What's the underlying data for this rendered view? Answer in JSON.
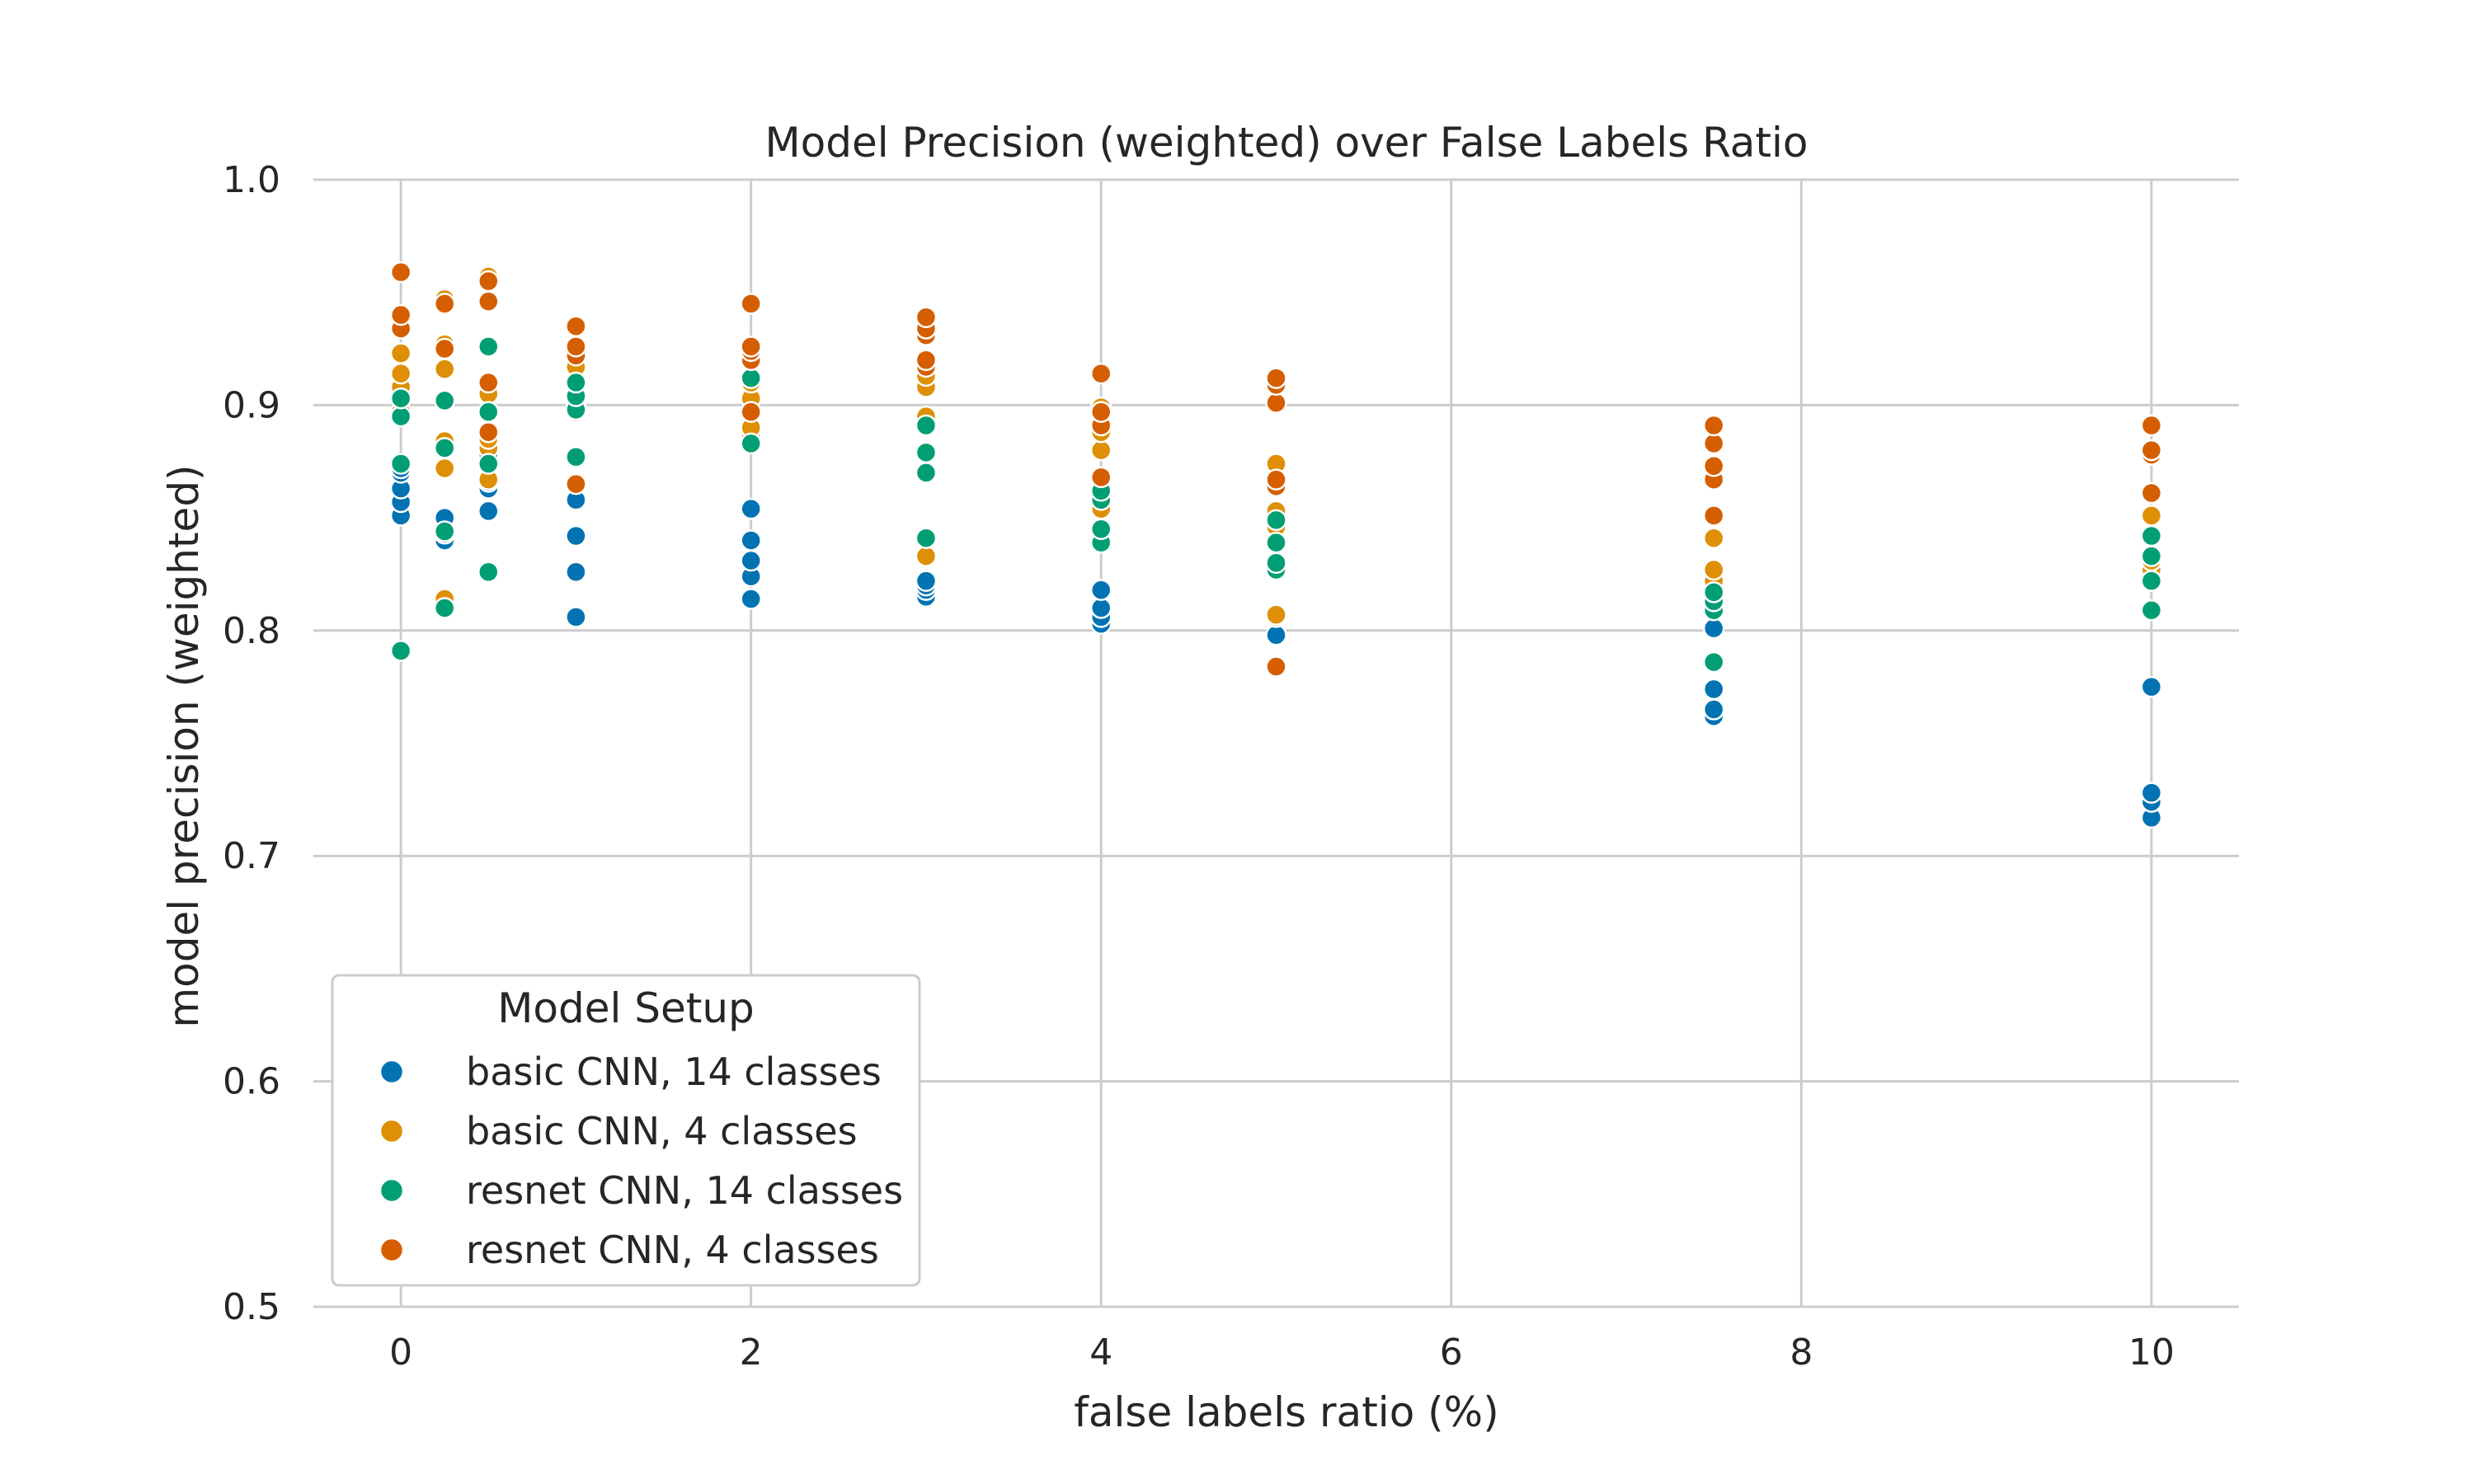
{
  "chart_data": {
    "type": "scatter",
    "title": "Model Precision (weighted) over False Labels Ratio",
    "xlabel": "false labels ratio (%)",
    "ylabel": "model precision (weighted)",
    "xlim": [
      -0.5,
      10.5
    ],
    "ylim": [
      0.5,
      1.0
    ],
    "xticks": [
      "0",
      "2",
      "4",
      "6",
      "8",
      "10"
    ],
    "yticks": [
      "0.5",
      "0.6",
      "0.7",
      "0.8",
      "0.9",
      "1.0"
    ],
    "grid": true,
    "legend_title": "Model Setup",
    "legend_position": "lower-left",
    "series": [
      {
        "name": "basic CNN, 14 classes",
        "color": "#0173b2",
        "points": [
          [
            0,
            0.851
          ],
          [
            0,
            0.857
          ],
          [
            0,
            0.863
          ],
          [
            0,
            0.87
          ],
          [
            0,
            0.872
          ],
          [
            0.25,
            0.84
          ],
          [
            0.25,
            0.843
          ],
          [
            0.25,
            0.85
          ],
          [
            0.5,
            0.853
          ],
          [
            0.5,
            0.863
          ],
          [
            0.5,
            0.866
          ],
          [
            0.5,
            0.878
          ],
          [
            1,
            0.806
          ],
          [
            1,
            0.826
          ],
          [
            1,
            0.842
          ],
          [
            1,
            0.858
          ],
          [
            2,
            0.814
          ],
          [
            2,
            0.824
          ],
          [
            2,
            0.831
          ],
          [
            2,
            0.84
          ],
          [
            2,
            0.854
          ],
          [
            3,
            0.815
          ],
          [
            3,
            0.818
          ],
          [
            3,
            0.82
          ],
          [
            3,
            0.822
          ],
          [
            4,
            0.803
          ],
          [
            4,
            0.806
          ],
          [
            4,
            0.81
          ],
          [
            4,
            0.818
          ],
          [
            5,
            0.798
          ],
          [
            7.5,
            0.762
          ],
          [
            7.5,
            0.765
          ],
          [
            7.5,
            0.774
          ],
          [
            7.5,
            0.801
          ],
          [
            10,
            0.717
          ],
          [
            10,
            0.724
          ],
          [
            10,
            0.728
          ],
          [
            10,
            0.775
          ]
        ]
      },
      {
        "name": "basic CNN, 4 classes",
        "color": "#de8f05",
        "points": [
          [
            0,
            0.897
          ],
          [
            0,
            0.903
          ],
          [
            0,
            0.908
          ],
          [
            0,
            0.914
          ],
          [
            0,
            0.923
          ],
          [
            0.25,
            0.814
          ],
          [
            0.25,
            0.872
          ],
          [
            0.25,
            0.884
          ],
          [
            0.25,
            0.916
          ],
          [
            0.25,
            0.927
          ],
          [
            0.25,
            0.947
          ],
          [
            0.5,
            0.867
          ],
          [
            0.5,
            0.881
          ],
          [
            0.5,
            0.885
          ],
          [
            0.5,
            0.905
          ],
          [
            0.5,
            0.957
          ],
          [
            1,
            0.897
          ],
          [
            1,
            0.902
          ],
          [
            1,
            0.911
          ],
          [
            1,
            0.917
          ],
          [
            2,
            0.886
          ],
          [
            2,
            0.89
          ],
          [
            2,
            0.903
          ],
          [
            2,
            0.91
          ],
          [
            3,
            0.833
          ],
          [
            3,
            0.895
          ],
          [
            3,
            0.908
          ],
          [
            3,
            0.913
          ],
          [
            4,
            0.854
          ],
          [
            4,
            0.858
          ],
          [
            4,
            0.88
          ],
          [
            4,
            0.888
          ],
          [
            4,
            0.899
          ],
          [
            5,
            0.806
          ],
          [
            5,
            0.807
          ],
          [
            5,
            0.846
          ],
          [
            5,
            0.853
          ],
          [
            5,
            0.865
          ],
          [
            5,
            0.874
          ],
          [
            7.5,
            0.817
          ],
          [
            7.5,
            0.822
          ],
          [
            7.5,
            0.827
          ],
          [
            7.5,
            0.841
          ],
          [
            7.5,
            0.867
          ],
          [
            10,
            0.827
          ],
          [
            10,
            0.831
          ],
          [
            10,
            0.851
          ]
        ]
      },
      {
        "name": "resnet CNN, 14 classes",
        "color": "#029e73",
        "points": [
          [
            0,
            0.791
          ],
          [
            0,
            0.874
          ],
          [
            0,
            0.895
          ],
          [
            0,
            0.903
          ],
          [
            0.25,
            0.81
          ],
          [
            0.25,
            0.844
          ],
          [
            0.25,
            0.881
          ],
          [
            0.25,
            0.902
          ],
          [
            0.5,
            0.826
          ],
          [
            0.5,
            0.874
          ],
          [
            0.5,
            0.897
          ],
          [
            0.5,
            0.926
          ],
          [
            1,
            0.877
          ],
          [
            1,
            0.898
          ],
          [
            1,
            0.904
          ],
          [
            1,
            0.91
          ],
          [
            2,
            0.883
          ],
          [
            2,
            0.912
          ],
          [
            3,
            0.841
          ],
          [
            3,
            0.87
          ],
          [
            3,
            0.879
          ],
          [
            3,
            0.891
          ],
          [
            4,
            0.839
          ],
          [
            4,
            0.845
          ],
          [
            4,
            0.858
          ],
          [
            4,
            0.862
          ],
          [
            5,
            0.827
          ],
          [
            5,
            0.83
          ],
          [
            5,
            0.839
          ],
          [
            5,
            0.849
          ],
          [
            7.5,
            0.786
          ],
          [
            7.5,
            0.809
          ],
          [
            7.5,
            0.813
          ],
          [
            7.5,
            0.817
          ],
          [
            10,
            0.809
          ],
          [
            10,
            0.822
          ],
          [
            10,
            0.833
          ],
          [
            10,
            0.842
          ]
        ]
      },
      {
        "name": "resnet CNN, 4 classes",
        "color": "#d55e00",
        "points": [
          [
            0,
            0.934
          ],
          [
            0,
            0.94
          ],
          [
            0,
            0.959
          ],
          [
            0.25,
            0.925
          ],
          [
            0.25,
            0.945
          ],
          [
            0.5,
            0.888
          ],
          [
            0.5,
            0.91
          ],
          [
            0.5,
            0.946
          ],
          [
            0.5,
            0.955
          ],
          [
            1,
            0.865
          ],
          [
            1,
            0.922
          ],
          [
            1,
            0.926
          ],
          [
            1,
            0.935
          ],
          [
            2,
            0.897
          ],
          [
            2,
            0.92
          ],
          [
            2,
            0.924
          ],
          [
            2,
            0.926
          ],
          [
            2,
            0.945
          ],
          [
            3,
            0.917
          ],
          [
            3,
            0.92
          ],
          [
            3,
            0.931
          ],
          [
            3,
            0.934
          ],
          [
            3,
            0.939
          ],
          [
            4,
            0.868
          ],
          [
            4,
            0.891
          ],
          [
            4,
            0.897
          ],
          [
            4,
            0.914
          ],
          [
            5,
            0.784
          ],
          [
            5,
            0.864
          ],
          [
            5,
            0.867
          ],
          [
            5,
            0.901
          ],
          [
            5,
            0.909
          ],
          [
            5,
            0.912
          ],
          [
            7.5,
            0.851
          ],
          [
            7.5,
            0.867
          ],
          [
            7.5,
            0.873
          ],
          [
            7.5,
            0.883
          ],
          [
            7.5,
            0.891
          ],
          [
            10,
            0.861
          ],
          [
            10,
            0.878
          ],
          [
            10,
            0.88
          ],
          [
            10,
            0.891
          ]
        ]
      }
    ]
  }
}
